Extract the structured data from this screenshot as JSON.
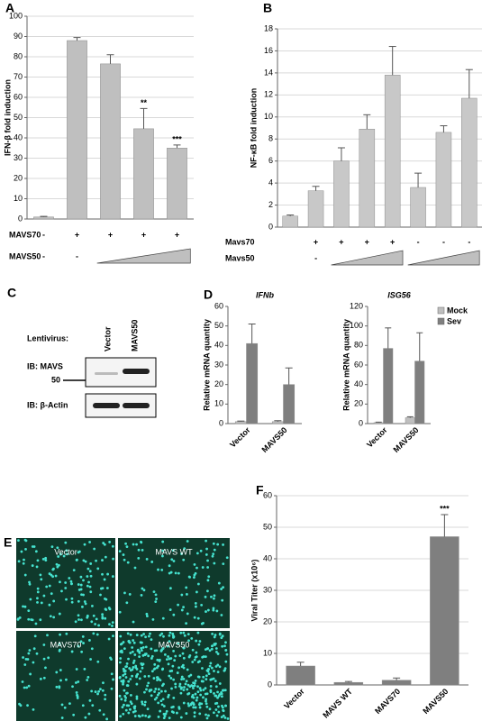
{
  "chart_data": [
    {
      "type": "bar",
      "panel": "A",
      "ylabel": "IFN-β fold induction",
      "values": [
        1,
        88,
        76.5,
        44.5,
        35
      ],
      "errors": [
        0.3,
        1.5,
        4.5,
        10,
        1.5
      ],
      "color": "#bfbfbf",
      "annotations": [
        null,
        null,
        null,
        "**",
        "***"
      ],
      "ylim": [
        0,
        100
      ],
      "yticks": [
        0,
        10,
        20,
        30,
        40,
        50,
        60,
        70,
        80,
        90,
        100
      ],
      "grid": true,
      "treatments": [
        {
          "name": "MAVS70",
          "marks": [
            "-",
            "+",
            "+",
            "+",
            "+"
          ]
        },
        {
          "name": "MAVS50",
          "marks": [
            "-",
            "-"
          ]
        }
      ]
    },
    {
      "type": "bar",
      "panel": "B",
      "ylabel": "NF-κB fold induction",
      "values": [
        1,
        3.3,
        6,
        8.9,
        13.8,
        3.6,
        8.6,
        11.7
      ],
      "errors": [
        0.1,
        0.4,
        1.2,
        1.3,
        2.6,
        1.3,
        0.6,
        2.6
      ],
      "color": "#c8c8c8",
      "ylim": [
        0,
        18
      ],
      "yticks": [
        0,
        2,
        4,
        6,
        8,
        10,
        12,
        14,
        16,
        18
      ],
      "grid": true,
      "treatments": [
        {
          "name": "Mavs70",
          "marks": [
            null,
            "+",
            "+",
            "+",
            "+",
            "-",
            "-",
            "-"
          ]
        },
        {
          "name": "Mavs50",
          "marks": [
            null,
            "-"
          ]
        }
      ]
    },
    {
      "type": "bar",
      "panel": "D",
      "title": "IFNb",
      "ylabel": "Relative mRNA quantity",
      "categories": [
        "Vector",
        "MAVS50"
      ],
      "series": [
        {
          "color": "#bfbfbf",
          "values": [
            1,
            1
          ],
          "errors": [
            0.3,
            0.5
          ]
        },
        {
          "color": "#7f7f7f",
          "values": [
            41,
            20
          ],
          "errors": [
            10,
            8.5
          ]
        }
      ],
      "ylim": [
        0,
        60
      ],
      "yticks": [
        0,
        10,
        20,
        30,
        40,
        50,
        60
      ],
      "grid": false
    },
    {
      "type": "bar",
      "title": "ISG56",
      "ylabel": "Relative mRNA quantity",
      "categories": [
        "Vector",
        "MAVS50"
      ],
      "series": [
        {
          "name": "Mock",
          "color": "#bfbfbf",
          "values": [
            1,
            6
          ],
          "errors": [
            0.5,
            1
          ]
        },
        {
          "name": "Sev",
          "color": "#7f7f7f",
          "values": [
            77,
            64
          ],
          "errors": [
            21,
            29
          ]
        }
      ],
      "ylim": [
        0,
        120
      ],
      "yticks": [
        0,
        20,
        40,
        60,
        80,
        100,
        120
      ],
      "grid": false,
      "legend": "right"
    },
    {
      "type": "bar",
      "panel": "F",
      "ylabel": "Viral Titer (x10⁶)",
      "categories": [
        "Vector",
        "MAVS WT",
        "MAVS70",
        "MAVS50"
      ],
      "values": [
        6,
        0.8,
        1.5,
        47
      ],
      "errors": [
        1.2,
        0.3,
        0.7,
        7
      ],
      "color": "#7f7f7f",
      "annotations": [
        null,
        null,
        null,
        "***"
      ],
      "ylim": [
        0,
        60
      ],
      "yticks": [
        0,
        10,
        20,
        30,
        40,
        50,
        60
      ],
      "grid": true
    }
  ],
  "blot": {
    "panel": "C",
    "row_title": "Lentivirus:",
    "lanes": [
      "Vector",
      "MAVS50"
    ],
    "blots": [
      {
        "label": "IB: MAVS",
        "marker": "50"
      },
      {
        "label": "IB: β-Actin"
      }
    ]
  },
  "images": {
    "panel": "E",
    "tiles": [
      "Vector",
      "MAVS WT",
      "MAVS70",
      "MAVS50"
    ]
  }
}
